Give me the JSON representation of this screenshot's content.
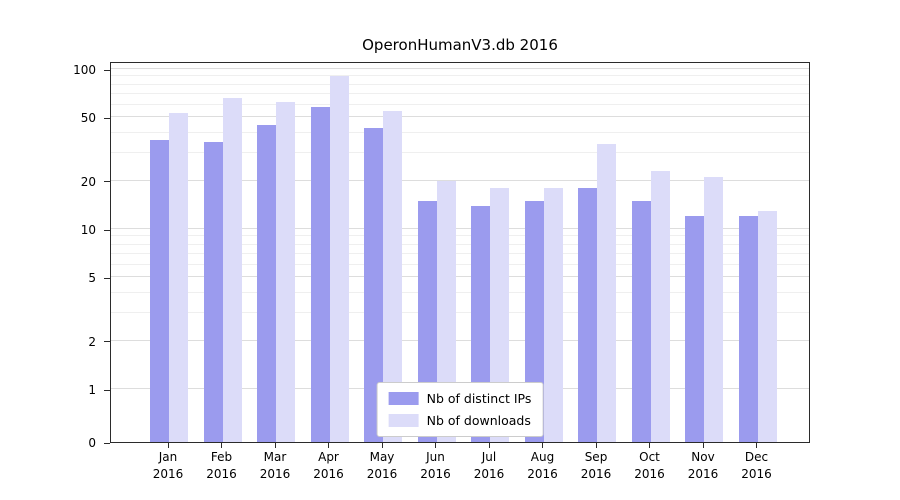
{
  "title": "OperonHumanV3.db 2016",
  "chart_data": {
    "type": "bar",
    "title": "OperonHumanV3.db 2016",
    "categories": [
      "Jan 2016",
      "Feb 2016",
      "Mar 2016",
      "Apr 2016",
      "May 2016",
      "Jun 2016",
      "Jul 2016",
      "Aug 2016",
      "Sep 2016",
      "Oct 2016",
      "Nov 2016",
      "Dec 2016"
    ],
    "series": [
      {
        "name": "Nb of distinct IPs",
        "color": "#9b9bee",
        "values": [
          36,
          35,
          45,
          58,
          43,
          15,
          14,
          15,
          18,
          15,
          12,
          12
        ]
      },
      {
        "name": "Nb of downloads",
        "color": "#dcdcf9",
        "values": [
          53,
          66,
          62,
          90,
          55,
          20,
          18,
          18,
          34,
          23,
          21,
          13
        ]
      }
    ],
    "yscale": "symlog",
    "y_ticks": [
      0,
      1,
      2,
      5,
      10,
      20,
      50,
      100
    ],
    "y_minor_ticks": [
      3,
      4,
      6,
      7,
      8,
      9,
      30,
      40,
      60,
      70,
      80,
      90
    ],
    "ylim": [
      0,
      112
    ],
    "grid": true,
    "legend_position": "lower center",
    "colors": {
      "distinct_ips": "#9b9bee",
      "downloads": "#dcdcf9",
      "grid_major": "#dddddd",
      "grid_minor": "#efefef",
      "spine": "#2b2b2b"
    }
  }
}
